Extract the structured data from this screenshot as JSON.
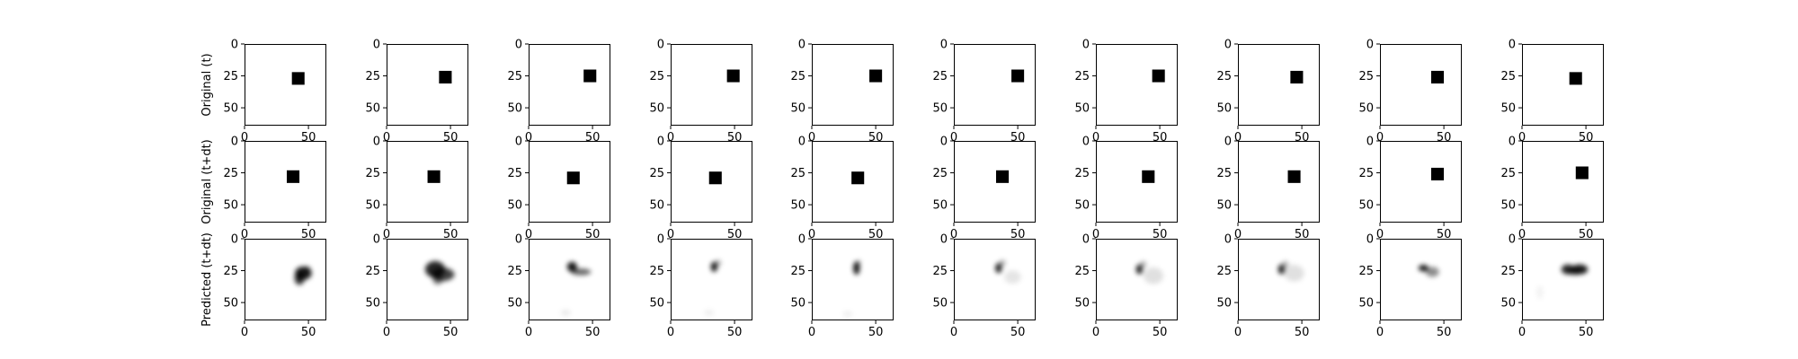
{
  "chart_data": {
    "type": "heatmap",
    "description_of_layout": "3 rows x 10 columns grid of image subplots",
    "row_labels": [
      "Original (t)",
      "Original (t+dt)",
      "Predicted (t+dt)"
    ],
    "x_ticks": [
      0,
      50
    ],
    "y_ticks": [
      0,
      25,
      50
    ],
    "xlim": [
      0,
      64
    ],
    "ylim": [
      64,
      0
    ],
    "colormap": "gray_r",
    "square_size": 6,
    "original_t_centers": [
      [
        42,
        27
      ],
      [
        46,
        26
      ],
      [
        48,
        25
      ],
      [
        49,
        25
      ],
      [
        50,
        25
      ],
      [
        50,
        25
      ],
      [
        49,
        25
      ],
      [
        46,
        26
      ],
      [
        45,
        26
      ],
      [
        42,
        27
      ]
    ],
    "original_tdt_centers": [
      [
        38,
        28
      ],
      [
        37,
        28
      ],
      [
        35,
        29
      ],
      [
        35,
        29
      ],
      [
        36,
        29
      ],
      [
        38,
        28
      ],
      [
        41,
        28
      ],
      [
        44,
        28
      ],
      [
        45,
        26
      ],
      [
        47,
        25
      ]
    ],
    "predicted_blobs": [
      [
        {
          "x": 46,
          "y": 27,
          "rx": 5,
          "ry": 4,
          "a": 0.9
        },
        {
          "x": 43,
          "y": 31,
          "rx": 3,
          "ry": 4,
          "a": 0.8
        },
        {
          "x": 49,
          "y": 24,
          "rx": 2,
          "ry": 2,
          "a": 0.4
        }
      ],
      [
        {
          "x": 38,
          "y": 24,
          "rx": 6,
          "ry": 5,
          "a": 0.85
        },
        {
          "x": 44,
          "y": 28,
          "rx": 7,
          "ry": 4,
          "a": 0.75
        },
        {
          "x": 40,
          "y": 32,
          "rx": 3,
          "ry": 3,
          "a": 0.5
        }
      ],
      [
        {
          "x": 34,
          "y": 22,
          "rx": 3,
          "ry": 3,
          "a": 0.9
        },
        {
          "x": 41,
          "y": 26,
          "rx": 6,
          "ry": 2,
          "a": 0.6
        },
        {
          "x": 29,
          "y": 58,
          "rx": 3,
          "ry": 2,
          "a": 0.08
        }
      ],
      [
        {
          "x": 34,
          "y": 22,
          "rx": 2,
          "ry": 3,
          "a": 0.9
        },
        {
          "x": 37,
          "y": 19,
          "rx": 2,
          "ry": 2,
          "a": 0.3
        },
        {
          "x": 30,
          "y": 58,
          "rx": 3,
          "ry": 2,
          "a": 0.06
        }
      ],
      [
        {
          "x": 35,
          "y": 23,
          "rx": 2,
          "ry": 4,
          "a": 0.9
        },
        {
          "x": 37,
          "y": 19,
          "rx": 1,
          "ry": 2,
          "a": 0.3
        },
        {
          "x": 28,
          "y": 59,
          "rx": 3,
          "ry": 2,
          "a": 0.06
        }
      ],
      [
        {
          "x": 35,
          "y": 23,
          "rx": 2,
          "ry": 3,
          "a": 0.85
        },
        {
          "x": 38,
          "y": 19,
          "rx": 2,
          "ry": 2,
          "a": 0.3
        },
        {
          "x": 46,
          "y": 30,
          "rx": 5,
          "ry": 4,
          "a": 0.1
        }
      ],
      [
        {
          "x": 34,
          "y": 24,
          "rx": 2,
          "ry": 3,
          "a": 0.85
        },
        {
          "x": 37,
          "y": 20,
          "rx": 2,
          "ry": 2,
          "a": 0.3
        },
        {
          "x": 45,
          "y": 29,
          "rx": 6,
          "ry": 5,
          "a": 0.12
        }
      ],
      [
        {
          "x": 34,
          "y": 24,
          "rx": 2,
          "ry": 3,
          "a": 0.85
        },
        {
          "x": 37,
          "y": 20,
          "rx": 2,
          "ry": 2,
          "a": 0.3
        },
        {
          "x": 44,
          "y": 27,
          "rx": 6,
          "ry": 5,
          "a": 0.12
        }
      ],
      [
        {
          "x": 34,
          "y": 23,
          "rx": 3,
          "ry": 2,
          "a": 0.9
        },
        {
          "x": 41,
          "y": 26,
          "rx": 4,
          "ry": 3,
          "a": 0.45
        }
      ],
      [
        {
          "x": 36,
          "y": 24,
          "rx": 4,
          "ry": 3,
          "a": 0.85
        },
        {
          "x": 45,
          "y": 24,
          "rx": 5,
          "ry": 3,
          "a": 0.9
        },
        {
          "x": 41,
          "y": 26,
          "rx": 4,
          "ry": 2,
          "a": 0.6
        },
        {
          "x": 14,
          "y": 42,
          "rx": 2,
          "ry": 4,
          "a": 0.05
        }
      ]
    ]
  }
}
